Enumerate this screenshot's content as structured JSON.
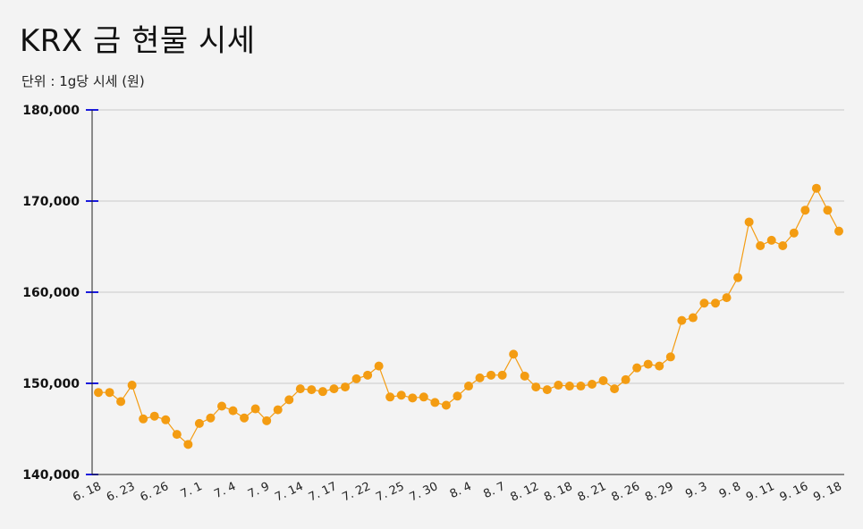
{
  "title": "KRX 금 현물 시세",
  "subtitle": "단위 : 1g당 시세 (원)",
  "colors": {
    "background": "#f3f3f3",
    "line": "#f39c12",
    "point": "#f39c12",
    "grid": "#c8c8c8",
    "tick": "#1a1adc",
    "axis": "#222222"
  },
  "chart_data": {
    "type": "line",
    "title": "KRX 금 현물 시세",
    "subtitle": "단위 : 1g당 시세 (원)",
    "xlabel": "",
    "ylabel": "",
    "ylim": [
      140000,
      180000
    ],
    "yticks": [
      140000,
      150000,
      160000,
      170000,
      180000
    ],
    "ytick_labels": [
      "140,000",
      "150,000",
      "160,000",
      "170,000",
      "180,000"
    ],
    "grid": true,
    "x_labels": [
      {
        "index": 0,
        "label": "6. 18"
      },
      {
        "index": 3,
        "label": "6. 23"
      },
      {
        "index": 6,
        "label": "6. 26"
      },
      {
        "index": 9,
        "label": "7. 1"
      },
      {
        "index": 12,
        "label": "7. 4"
      },
      {
        "index": 15,
        "label": "7. 9"
      },
      {
        "index": 18,
        "label": "7. 14"
      },
      {
        "index": 21,
        "label": "7. 17"
      },
      {
        "index": 24,
        "label": "7. 22"
      },
      {
        "index": 27,
        "label": "7. 25"
      },
      {
        "index": 30,
        "label": "7. 30"
      },
      {
        "index": 33,
        "label": "8. 4"
      },
      {
        "index": 36,
        "label": "8. 7"
      },
      {
        "index": 39,
        "label": "8. 12"
      },
      {
        "index": 42,
        "label": "8. 18"
      },
      {
        "index": 45,
        "label": "8. 21"
      },
      {
        "index": 48,
        "label": "8. 26"
      },
      {
        "index": 51,
        "label": "8. 29"
      },
      {
        "index": 54,
        "label": "9. 3"
      },
      {
        "index": 57,
        "label": "9. 8"
      },
      {
        "index": 60,
        "label": "9. 11"
      },
      {
        "index": 63,
        "label": "9. 16"
      },
      {
        "index": 66,
        "label": "9. 18"
      }
    ],
    "values": [
      149000,
      149000,
      148000,
      149800,
      146100,
      146400,
      146000,
      144400,
      143300,
      145600,
      146200,
      147500,
      147000,
      146200,
      147200,
      145900,
      147100,
      148200,
      149400,
      149300,
      149100,
      149400,
      149600,
      150500,
      150900,
      151900,
      148500,
      148700,
      148400,
      148500,
      147900,
      147600,
      148600,
      149700,
      150600,
      150900,
      150900,
      153200,
      150800,
      149600,
      149300,
      149800,
      149700,
      149700,
      149900,
      150300,
      149400,
      150400,
      151700,
      152100,
      151900,
      152900,
      156900,
      157200,
      158800,
      158800,
      159400,
      161600,
      167700,
      165100,
      165700,
      165100,
      166500,
      169000,
      171400,
      169000,
      166700
    ]
  }
}
